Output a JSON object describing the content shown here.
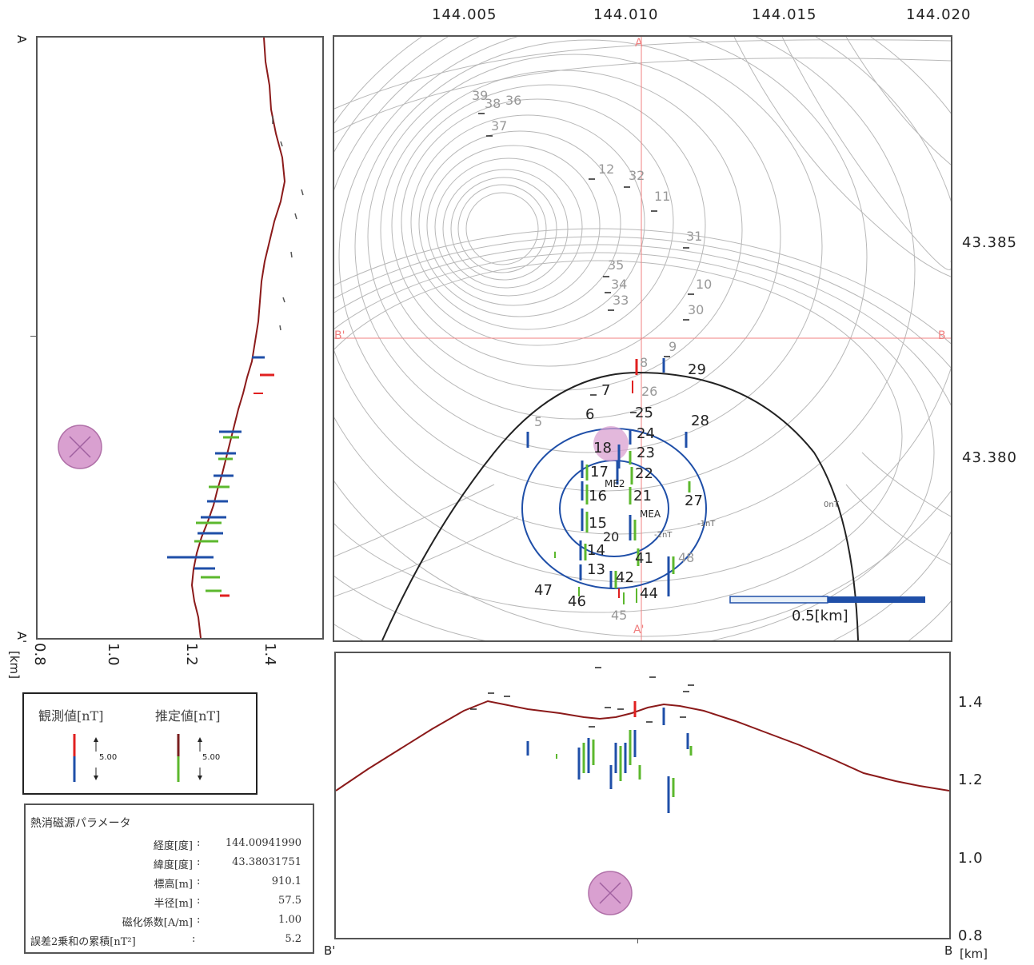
{
  "top_axis": {
    "ticks": [
      "144.005",
      "144.010",
      "144.015",
      "144.020"
    ]
  },
  "right_axis": {
    "ticks": [
      "43.385",
      "43.380"
    ]
  },
  "bottom_axis": {
    "ticks": [
      "1.4",
      "1.2",
      "1.0",
      "0.8"
    ],
    "unit": "[km]"
  },
  "left_axis": {
    "ticks": [
      "0.8",
      "1.0",
      "1.2",
      "1.4"
    ],
    "unit": "[km]"
  },
  "profile_labels": {
    "a_top": "A",
    "a_bottom": "A'",
    "b_left": "B'",
    "b_right": "B",
    "map_a_top": "A",
    "map_a_bottom": "A'",
    "map_b_left": "B'",
    "map_b_right": "B"
  },
  "stations": {
    "dark": [
      "29",
      "7",
      "6",
      "25",
      "28",
      "24",
      "23",
      "22",
      "17",
      "16",
      "21",
      "27",
      "15",
      "20",
      "14",
      "41",
      "13",
      "42",
      "47",
      "46",
      "44"
    ],
    "grey": [
      "39",
      "38",
      "36",
      "37",
      "12",
      "32",
      "11",
      "31",
      "35",
      "34",
      "33",
      "10",
      "30",
      "9",
      "8",
      "26",
      "5",
      "48",
      "45"
    ],
    "highlight": "18",
    "markers": [
      "ME2",
      "MEA"
    ]
  },
  "contours": {
    "zero": "0nT",
    "minus1": "-1nT",
    "minus2": "-2nT"
  },
  "scale_bar": {
    "label": "0.5[km]"
  },
  "legend": {
    "observed": "観測値[nT]",
    "estimated": "推定値[nT]",
    "scale_obs": "5.00",
    "scale_est": "5.00",
    "colors": {
      "obs_pos": "#e02020",
      "obs_neg": "#1f4fa8",
      "est_pos": "#7a1f1f",
      "est_neg": "#5cb82e"
    }
  },
  "params": {
    "title": "熱消磁源パラメータ",
    "rows": [
      {
        "label": "経度[度]",
        "sep": ":",
        "value": "144.00941990"
      },
      {
        "label": "緯度[度]",
        "sep": ":",
        "value": "43.38031751"
      },
      {
        "label": "標高[m]",
        "sep": ":",
        "value": "910.1"
      },
      {
        "label": "半径[m]",
        "sep": ":",
        "value": "57.5"
      },
      {
        "label": "磁化係数[A/m]",
        "sep": ":",
        "value": "1.00"
      },
      {
        "label": "誤差2乗和の累積[nT²]",
        "sep": ":",
        "value": "5.2"
      }
    ]
  },
  "colors": {
    "terrain": "#8b1a1a",
    "source": "#d9a0d0",
    "crosshair": "#f08080",
    "contour": "#b8b8b8"
  }
}
